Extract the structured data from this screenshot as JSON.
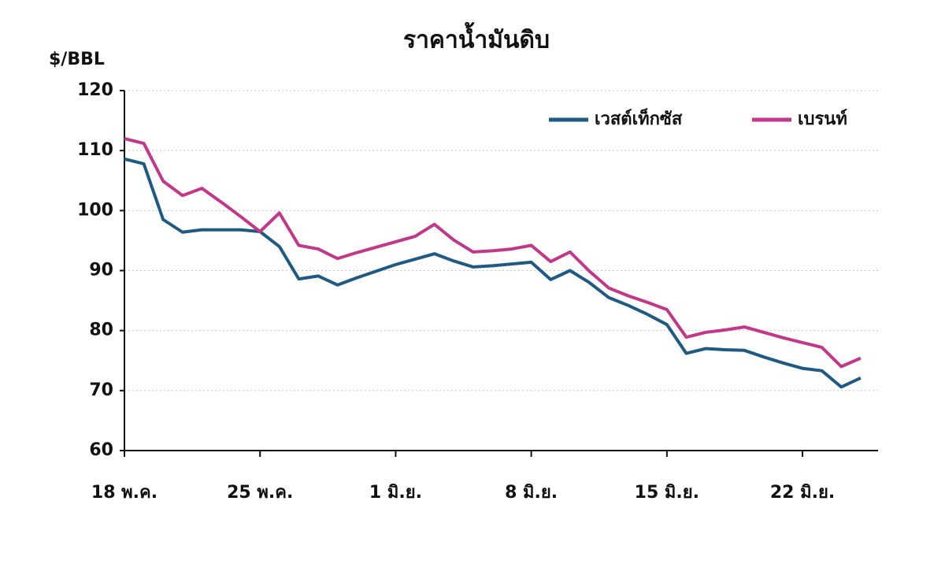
{
  "chart_data": {
    "type": "line",
    "title": "ราคาน้ำมันดิบ",
    "y_label": "$/BBL",
    "categories": [
      "18 พ.ค.",
      null,
      null,
      null,
      null,
      null,
      null,
      "25 พ.ค.",
      null,
      null,
      null,
      null,
      null,
      null,
      "1 มิ.ย.",
      null,
      null,
      null,
      null,
      null,
      null,
      "8 มิ.ย.",
      null,
      null,
      null,
      null,
      null,
      null,
      "15 มิ.ย.",
      null,
      null,
      null,
      null,
      null,
      null,
      "22 มิ.ย.",
      null,
      null,
      null
    ],
    "series": [
      {
        "name": "เวสต์เท็กซัส",
        "color": "#1f5a85",
        "values": [
          108.6,
          107.8,
          98.5,
          96.4,
          96.8,
          96.8,
          96.8,
          96.5,
          94.0,
          88.6,
          89.1,
          87.6,
          88.8,
          89.9,
          91.0,
          91.9,
          92.8,
          91.6,
          90.6,
          90.8,
          91.1,
          91.4,
          88.5,
          90.0,
          88.0,
          85.5,
          84.2,
          82.7,
          81.0,
          76.2,
          77.0,
          76.8,
          76.7,
          75.6,
          74.6,
          73.7,
          73.3,
          70.6,
          72.1
        ]
      },
      {
        "name": "เบรนท์",
        "color": "#c2378a",
        "values": [
          112.0,
          111.2,
          104.9,
          102.5,
          103.7,
          101.4,
          99.0,
          96.5,
          99.6,
          94.2,
          93.6,
          92.0,
          93.0,
          93.9,
          94.8,
          95.7,
          97.7,
          95.1,
          93.1,
          93.3,
          93.6,
          94.2,
          91.5,
          93.1,
          89.9,
          87.1,
          85.8,
          84.7,
          83.5,
          78.9,
          79.7,
          80.1,
          80.6,
          79.7,
          78.8,
          78.0,
          77.2,
          74.0,
          75.4
        ]
      }
    ],
    "ylim": [
      60,
      120
    ],
    "yticks": [
      60,
      70,
      80,
      90,
      100,
      110,
      120
    ],
    "grid": true,
    "legend": "top-right"
  }
}
